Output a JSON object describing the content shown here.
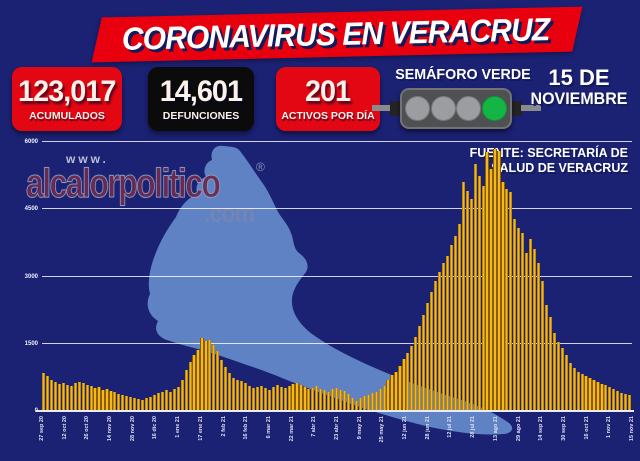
{
  "header": {
    "title": "CORONAVIRUS EN VERACRUZ"
  },
  "stats": [
    {
      "value": "123,017",
      "label": "ACUMULADOS"
    },
    {
      "value": "14,601",
      "label": "DEFUNCIONES"
    },
    {
      "value": "201",
      "label": "ACTIVOS POR DÍA"
    }
  ],
  "semaforo": {
    "label": "SEMÁFORO VERDE",
    "lights": [
      "off",
      "off",
      "off",
      "green"
    ]
  },
  "date": {
    "line1": "15 DE",
    "line2": "NOVIEMBRE"
  },
  "source": {
    "line1": "FUENTE: SECRETARÍA DE",
    "line2": "SALUD DE VERACRUZ"
  },
  "watermark": {
    "prefix": "www.",
    "name": "alcalorpolitico",
    "registered": "®",
    "suffix": ".com"
  },
  "chart_data": {
    "type": "bar",
    "title": "",
    "ylim": [
      0,
      6000
    ],
    "y_ticks": [
      0,
      1500,
      3000,
      4500,
      6000
    ],
    "grid": true,
    "x_tick_labels": [
      "27 sep 20",
      "12 oct 20",
      "26 oct 20",
      "14 nov 20",
      "28 nov 20",
      "16 dic 20",
      "1 ene 21",
      "17 ene 21",
      "2 feb 21",
      "16 feb 21",
      "6 mar 21",
      "22 mar 21",
      "7 abr 21",
      "23 abr 21",
      "9 may 21",
      "25 may 21",
      "12 jun 21",
      "28 jun 21",
      "12 jul 21",
      "28 jul 21",
      "13 ago 21",
      "29 ago 21",
      "14 sep 21",
      "30 sep 21",
      "16 oct 21",
      "1 nov 21",
      "15 nov 21"
    ],
    "values": [
      850,
      780,
      700,
      640,
      610,
      630,
      580,
      555,
      620,
      650,
      615,
      590,
      550,
      515,
      535,
      470,
      495,
      445,
      415,
      390,
      360,
      335,
      305,
      285,
      265,
      250,
      285,
      320,
      355,
      395,
      430,
      465,
      435,
      490,
      545,
      690,
      915,
      1100,
      1260,
      1370,
      1630,
      1555,
      1595,
      1480,
      1330,
      1140,
      990,
      845,
      730,
      700,
      660,
      620,
      550,
      510,
      530,
      560,
      510,
      470,
      530,
      580,
      545,
      510,
      560,
      610,
      635,
      580,
      530,
      490,
      520,
      550,
      500,
      460,
      430,
      480,
      510,
      470,
      440,
      380,
      280,
      230,
      300,
      330,
      360,
      400,
      435,
      480,
      560,
      695,
      805,
      860,
      1000,
      1150,
      1300,
      1450,
      1650,
      1900,
      2150,
      2400,
      2650,
      2900,
      3100,
      3300,
      3450,
      3700,
      3905,
      4170,
      5100,
      4910,
      4730,
      5510,
      5250,
      5020,
      5770,
      5400,
      5850,
      5810,
      5100,
      4950,
      4875,
      4280,
      4090,
      3980,
      3530,
      3830,
      3610,
      3310,
      2900,
      2370,
      2100,
      1750,
      1550,
      1400,
      1250,
      1080,
      950,
      870,
      820,
      780,
      730,
      690,
      650,
      610,
      570,
      530,
      490,
      450,
      410,
      380,
      350
    ]
  },
  "colors": {
    "background": "#1b2173",
    "banner_red": "#e8000f",
    "stat_red": "#e30613",
    "stat_black": "#0b0b0b",
    "bar_fill": "#f4b919",
    "bar_edge": "#8a5c00",
    "map_blue": "#5e82c4",
    "semaforo_green": "#15b545",
    "semaforo_gray": "#9b9da0",
    "grid_white": "#ffffff"
  }
}
